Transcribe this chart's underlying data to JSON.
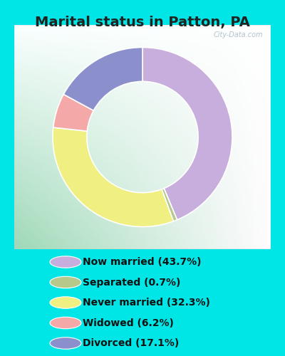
{
  "title": "Marital status in Patton, PA",
  "categories": [
    "Now married",
    "Separated",
    "Never married",
    "Widowed",
    "Divorced"
  ],
  "values": [
    43.7,
    0.7,
    32.3,
    6.2,
    17.1
  ],
  "colors": [
    "#c8aedd",
    "#b5c98a",
    "#f0ef82",
    "#f4a8a8",
    "#8b8fcc"
  ],
  "legend_labels": [
    "Now married (43.7%)",
    "Separated (0.7%)",
    "Never married (32.3%)",
    "Widowed (6.2%)",
    "Divorced (17.1%)"
  ],
  "background_cyan": "#00e5e5",
  "background_chart_color": "#e8f5ee",
  "title_fontsize": 14,
  "legend_fontsize": 10,
  "watermark": "City-Data.com"
}
